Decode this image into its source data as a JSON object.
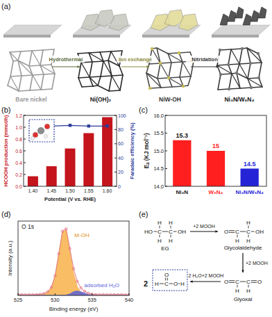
{
  "panel_labels": [
    "(a)",
    "(b)",
    "(c)",
    "(d)",
    "(e)"
  ],
  "schematic": {
    "stages": [
      "Bare nickel",
      "Ni(OH)₂",
      "NiW-OH",
      "Ni₃N/W₅N₄"
    ],
    "steps": [
      "Hydrothermal",
      "Ion exchange",
      "Nitridation"
    ]
  },
  "chart_data": [
    {
      "type": "bar",
      "x_label": "Potential (V vs. RHE)",
      "y_label": "HCOOH production (mmol/h)",
      "y2_label": "Faradaic efficiency (%)",
      "categories": [
        "1.40",
        "1.45",
        "1.50",
        "1.55",
        "1.60"
      ],
      "series": [
        {
          "type": "bar",
          "color": "#c4141c",
          "values": [
            0.17,
            0.34,
            0.64,
            0.9,
            1.17
          ]
        },
        {
          "type": "line",
          "axis": "y2",
          "color": "#2b3a9a",
          "marker": "square",
          "line_style": "solid",
          "values": [
            84,
            85,
            86,
            85,
            85
          ]
        }
      ],
      "ylim": [
        0,
        1.2
      ],
      "yticks": [
        {
          "value": 0,
          "label": "0.0"
        },
        0.2,
        0.4,
        0.6,
        0.8,
        {
          "value": 1,
          "label": "1.0"
        },
        1.2
      ],
      "y2lim": [
        0,
        100
      ],
      "y2ticks": [
        0,
        20,
        40,
        60,
        80,
        100
      ]
    },
    {
      "type": "bar",
      "y_label": "Eₐ (KJ mol⁻¹)",
      "categories": [
        "Ni₃N",
        "W₅N₄",
        "Ni₃N/W₅N₄"
      ],
      "values": [
        15.3,
        15,
        14.5
      ],
      "colors": [
        "#ff1f1f",
        "#ff1f1f",
        "#2424d6"
      ],
      "data_labels": true,
      "ylim": [
        14,
        16
      ],
      "yticks": [
        {
          "value": 14,
          "label": "14.0"
        },
        14.5,
        {
          "value": 15,
          "label": "15.0"
        },
        15.5,
        {
          "value": 16,
          "label": "16.0"
        }
      ]
    },
    {
      "type": "line",
      "title": "O 1s",
      "x_label": "Binding energy (eV)",
      "y_label": "Intensity (a.u.)",
      "x": [
        525,
        525.5,
        526,
        526.5,
        527,
        527.5,
        528,
        528.5,
        529,
        529.5,
        530,
        530.5,
        531,
        531.5,
        532,
        532.5,
        533,
        533.5,
        534,
        534.5,
        535,
        535.5,
        536,
        536.5,
        537,
        537.5,
        538,
        538.5,
        539,
        539.5,
        540
      ],
      "xlim": [
        525,
        540
      ],
      "xticks": [
        525,
        530,
        535,
        540
      ],
      "ylim": [
        0,
        100
      ],
      "tick_labels": "x",
      "series": [
        {
          "type": "scatter",
          "color": "#e06a7a",
          "marker": "circle",
          "line_style": "solid",
          "values": [
            1,
            1.2,
            0.9,
            1.1,
            1,
            1.3,
            1.6,
            2.6,
            5,
            11,
            26.5,
            56,
            86.5,
            89.5,
            63,
            36,
            19,
            10,
            5.5,
            3,
            1.6,
            1.2,
            1,
            1.1,
            0.9,
            1,
            1.2,
            1,
            1.1,
            0.9,
            1
          ]
        },
        {
          "name": "M-OH",
          "type": "area",
          "color": "#f7b24a",
          "values": [
            0,
            0,
            0,
            0,
            0,
            0.2,
            0.5,
            1.5,
            4,
            10,
            25,
            55,
            85,
            88,
            60,
            30,
            12,
            4,
            1.5,
            0.5,
            0,
            0,
            0,
            0,
            0,
            0,
            0,
            0,
            0,
            0,
            0
          ]
        },
        {
          "name": "adsorbed H₂O",
          "type": "area",
          "color": "#5b63d6",
          "values": [
            0,
            0,
            0,
            0,
            0,
            0,
            0,
            0,
            0,
            0,
            0,
            0,
            0,
            0.5,
            2,
            5,
            6,
            5,
            3,
            1.5,
            0.5,
            0,
            0,
            0,
            0,
            0,
            0,
            0,
            0,
            0,
            0
          ]
        }
      ]
    }
  ],
  "scheme": {
    "molecules": [
      {
        "name": "EG",
        "atoms": [
          "H",
          "H",
          "HO",
          "C",
          "C",
          "OH",
          "H",
          "H"
        ]
      },
      {
        "name": "Glycolaldehyde",
        "atoms": [
          "O",
          "C",
          "C",
          "OH",
          "H",
          "H",
          "H"
        ]
      },
      {
        "name": "Glyoxal",
        "atoms": [
          "O",
          "C",
          "C",
          "O",
          "H",
          "H"
        ]
      },
      {
        "count": 2,
        "atoms": [
          "O",
          "H",
          "C",
          "O",
          "H"
        ]
      }
    ],
    "steps": [
      "+2 MOOH",
      "+2 MOOH",
      "2 H₂O+2 MOOH"
    ]
  }
}
